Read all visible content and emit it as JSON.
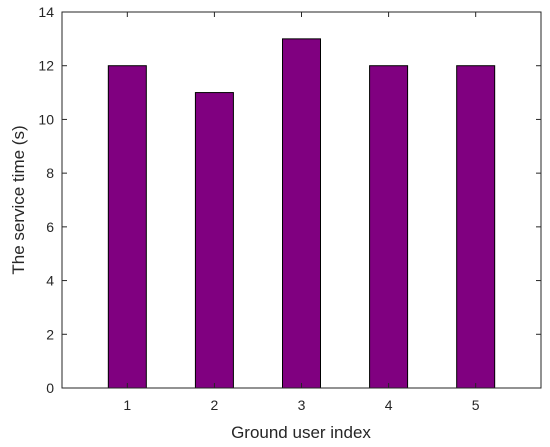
{
  "chart_data": {
    "type": "bar",
    "title": "",
    "xlabel": "Ground user index",
    "ylabel": "The service time (s)",
    "categories": [
      "1",
      "2",
      "3",
      "4",
      "5"
    ],
    "values": [
      12,
      11,
      13,
      12,
      12
    ],
    "ylim": [
      0,
      14
    ],
    "yticks": [
      0,
      2,
      4,
      6,
      8,
      10,
      12,
      14
    ],
    "grid": false,
    "legend": "none",
    "bar_color": "#800080"
  }
}
